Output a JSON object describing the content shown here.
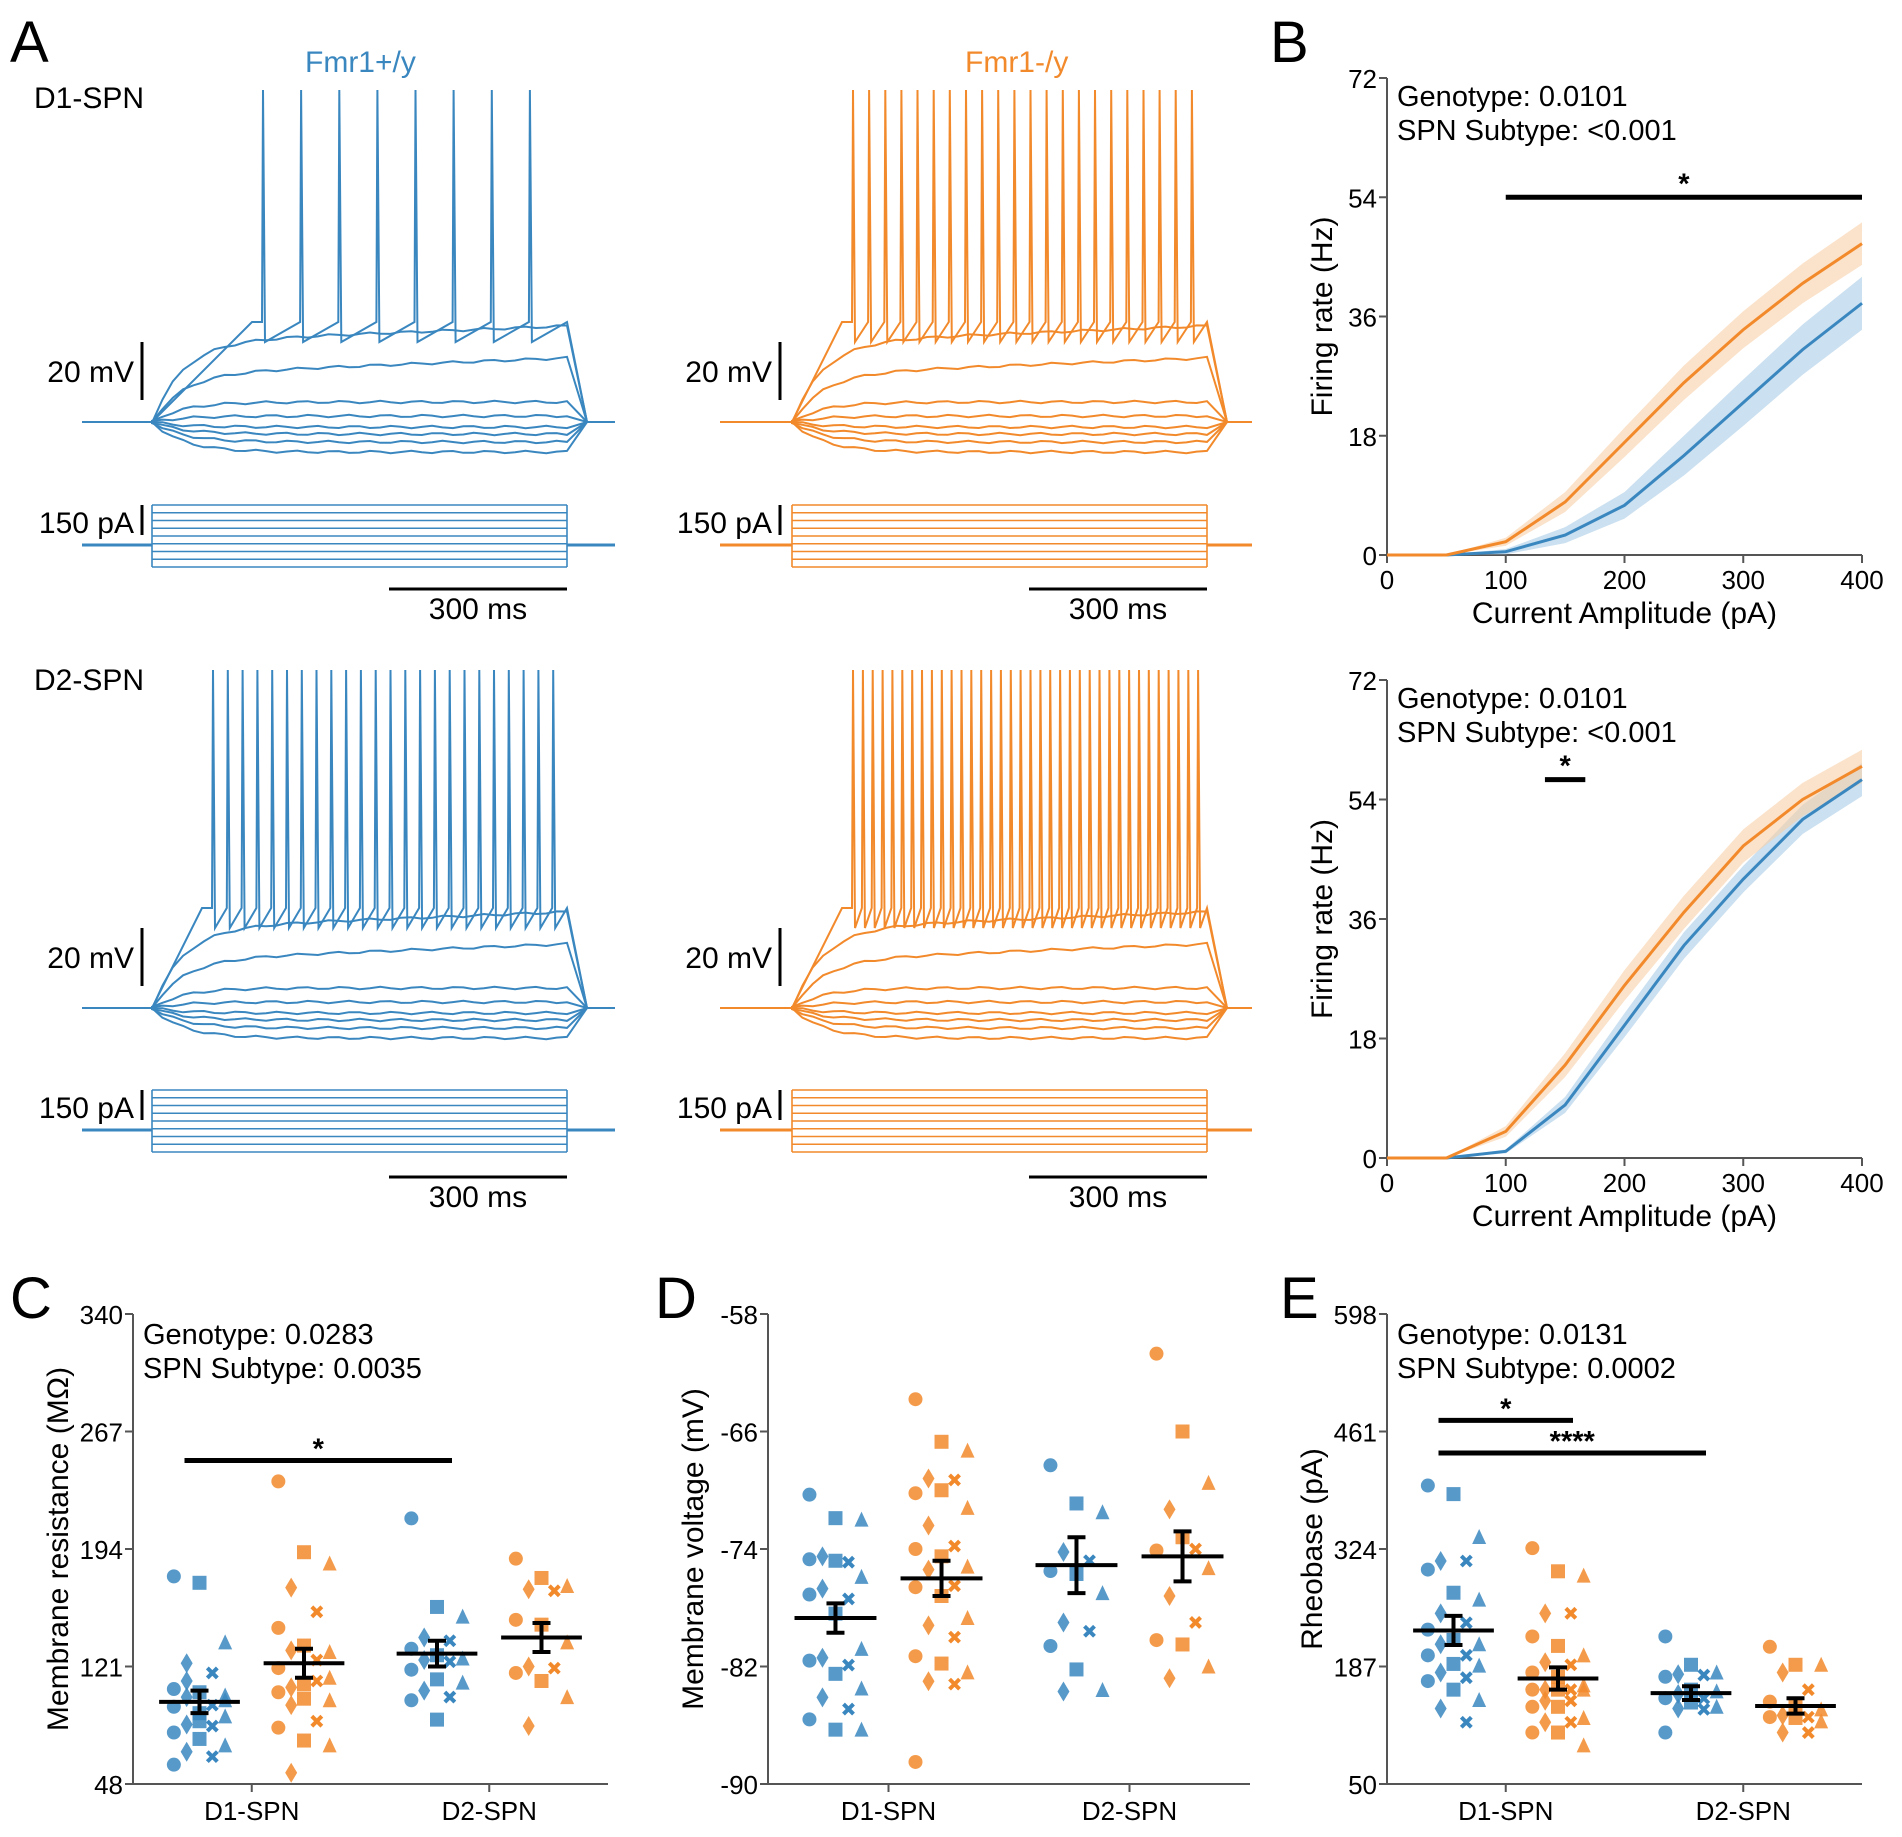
{
  "colors": {
    "wt": "#3a87c0",
    "ko": "#f28a2c",
    "wt_band": "#a9cbe6",
    "ko_band": "#f9cfa6"
  },
  "panel_a": {
    "letter": "A",
    "wt_label": "Fmr1+/y",
    "ko_label": "Fmr1-/y",
    "rows": [
      {
        "label": "D1-SPN",
        "wt_spikes": 8,
        "ko_spikes": 22
      },
      {
        "label": "D2-SPN",
        "wt_spikes": 24,
        "ko_spikes": 36
      }
    ],
    "voltage_scale": "20 mV",
    "current_scale": "150 pA",
    "time_scale": "300 ms"
  },
  "chart_data": [
    {
      "id": "B_D1",
      "panel": "B",
      "type": "line",
      "title": "",
      "xlabel": "Current Amplitude (pA)",
      "ylabel": "Firing rate (Hz)",
      "x": [
        0,
        50,
        100,
        150,
        200,
        250,
        300,
        350,
        400
      ],
      "xticks": [
        "0",
        "100",
        "200",
        "300",
        "400"
      ],
      "yticks": [
        "0",
        "18",
        "36",
        "54",
        "72"
      ],
      "xlim": [
        0,
        400
      ],
      "ylim": [
        0,
        72
      ],
      "annotations": [
        "Genotype: 0.0101",
        "SPN Subtype: <0.001"
      ],
      "significance": [
        {
          "x_from": 100,
          "x_to": 400,
          "y": 54,
          "label": "*"
        }
      ],
      "series": [
        {
          "name": "Fmr1+/y",
          "color": "wt",
          "values": [
            0,
            0,
            0.5,
            3,
            7.5,
            15,
            23,
            31,
            38
          ],
          "sem": [
            0,
            0,
            0.4,
            1.2,
            2,
            3,
            3.5,
            3.8,
            4
          ]
        },
        {
          "name": "Fmr1-/y",
          "color": "ko",
          "values": [
            0,
            0,
            2,
            8,
            17,
            26,
            34,
            41,
            47
          ],
          "sem": [
            0,
            0,
            0.6,
            1.5,
            2.2,
            2.6,
            2.8,
            3,
            3.2
          ]
        }
      ]
    },
    {
      "id": "B_D2",
      "panel": "B",
      "type": "line",
      "title": "",
      "xlabel": "Current Amplitude (pA)",
      "ylabel": "Firing rate (Hz)",
      "x": [
        0,
        50,
        100,
        150,
        200,
        250,
        300,
        350,
        400
      ],
      "xticks": [
        "0",
        "100",
        "200",
        "300",
        "400"
      ],
      "yticks": [
        "0",
        "18",
        "36",
        "54",
        "72"
      ],
      "xlim": [
        0,
        400
      ],
      "ylim": [
        0,
        72
      ],
      "annotations": [
        "Genotype: 0.0101",
        "SPN Subtype: <0.001"
      ],
      "significance": [
        {
          "x_from": 133,
          "x_to": 167,
          "y": 57,
          "label": "*"
        }
      ],
      "series": [
        {
          "name": "Fmr1+/y",
          "color": "wt",
          "values": [
            0,
            0,
            1,
            8,
            20,
            32,
            42,
            51,
            57
          ],
          "sem": [
            0,
            0,
            0.3,
            1.2,
            1.8,
            2,
            2,
            2.2,
            2.5
          ]
        },
        {
          "name": "Fmr1-/y",
          "color": "ko",
          "values": [
            0,
            0,
            4,
            14,
            26,
            37,
            47,
            54,
            59
          ],
          "sem": [
            0,
            0,
            0.8,
            1.8,
            2.3,
            2.5,
            2.5,
            2.5,
            2.5
          ]
        }
      ]
    },
    {
      "id": "C",
      "panel": "C",
      "type": "scatter",
      "ylabel": "Membrane resistance (MΩ)",
      "categories": [
        "D1-SPN",
        "D2-SPN"
      ],
      "yticks": [
        "48",
        "121",
        "194",
        "267",
        "340"
      ],
      "ylim": [
        48,
        340
      ],
      "annotations": [
        "Genotype: 0.0283",
        "SPN Subtype: 0.0035"
      ],
      "significance": [
        {
          "from": "D1-SPN:Fmr1+/y",
          "to": "D2-SPN:Fmr1+/y",
          "y": 249,
          "label": "*"
        }
      ],
      "groups": [
        {
          "category": "D1-SPN",
          "genotype": "Fmr1+/y",
          "mean": 99,
          "sem": 7,
          "points": [
            177,
            173,
            136,
            123,
            117,
            107,
            105,
            103,
            102,
            97,
            96,
            92,
            90,
            85,
            84,
            80,
            76,
            72,
            68,
            65,
            60,
            87,
            100,
            112
          ]
        },
        {
          "category": "D1-SPN",
          "genotype": "Fmr1-/y",
          "mean": 123,
          "sem": 9,
          "points": [
            236,
            192,
            185,
            170,
            155,
            145,
            134,
            130,
            131,
            125,
            120,
            110,
            114,
            108,
            112,
            105,
            101,
            100,
            97,
            87,
            83,
            75,
            72,
            55
          ]
        },
        {
          "category": "D2-SPN",
          "genotype": "Fmr1+/y",
          "mean": 129,
          "sem": 8,
          "points": [
            213,
            158,
            152,
            139,
            137,
            132,
            128,
            126,
            125,
            124,
            119,
            113,
            111,
            106,
            102,
            100,
            88
          ]
        },
        {
          "category": "D2-SPN",
          "genotype": "Fmr1-/y",
          "mean": 139,
          "sem": 9,
          "points": [
            188,
            176,
            171,
            169,
            168,
            150,
            147,
            136,
            121,
            120,
            117,
            112,
            102,
            84
          ]
        }
      ]
    },
    {
      "id": "D",
      "panel": "D",
      "type": "scatter",
      "ylabel": "Membrane voltage (mV)",
      "categories": [
        "D1-SPN",
        "D2-SPN"
      ],
      "yticks": [
        "-90",
        "-82",
        "-74",
        "-66",
        "-58"
      ],
      "ylim": [
        -90,
        -58
      ],
      "annotations": [],
      "significance": [],
      "groups": [
        {
          "category": "D1-SPN",
          "genotype": "Fmr1+/y",
          "mean": -78.7,
          "sem": 1.0,
          "points": [
            -70.3,
            -71.9,
            -72.0,
            -74.5,
            -74.9,
            -74.7,
            -74.8,
            -75.9,
            -76.7,
            -77.4,
            -77.1,
            -78.4,
            -80.8,
            -81.4,
            -81.9,
            -81.6,
            -82.5,
            -83.5,
            -84.1,
            -84.9,
            -85.6,
            -86.3,
            -86.3
          ]
        },
        {
          "category": "D1-SPN",
          "genotype": "Fmr1-/y",
          "mean": -76.0,
          "sem": 1.2,
          "points": [
            -63.8,
            -66.7,
            -67.3,
            -69.2,
            -69.3,
            -70.2,
            -70.0,
            -71.2,
            -72.4,
            -73.8,
            -74.0,
            -74.5,
            -75.2,
            -75.4,
            -76.5,
            -76.6,
            -77.2,
            -78.7,
            -79.2,
            -80.0,
            -81.3,
            -81.8,
            -82.4,
            -83.0,
            -83.2,
            -88.5
          ]
        },
        {
          "category": "D2-SPN",
          "genotype": "Fmr1+/y",
          "mean": -75.1,
          "sem": 1.9,
          "points": [
            -68.3,
            -70.9,
            -71.5,
            -74.2,
            -74.8,
            -75.5,
            -75.7,
            -77.0,
            -79.0,
            -79.6,
            -80.6,
            -82.2,
            -83.6,
            -83.7
          ]
        },
        {
          "category": "D2-SPN",
          "genotype": "Fmr1-/y",
          "mean": -74.5,
          "sem": 1.7,
          "points": [
            -60.7,
            -66.0,
            -69.5,
            -71.3,
            -74.0,
            -74.1,
            -73.2,
            -75.3,
            -77.2,
            -79.0,
            -80.2,
            -80.5,
            -82.0,
            -82.8
          ]
        }
      ]
    },
    {
      "id": "E",
      "panel": "E",
      "type": "scatter",
      "ylabel": "Rheobase (pA)",
      "categories": [
        "D1-SPN",
        "D2-SPN"
      ],
      "yticks": [
        "50",
        "187",
        "324",
        "461",
        "598"
      ],
      "ylim": [
        50,
        598
      ],
      "annotations": [
        "Genotype: 0.0131",
        "SPN Subtype: 0.0002"
      ],
      "significance": [
        {
          "from": "D1-SPN:Fmr1+/y",
          "to": "D1-SPN:Fmr1-/y",
          "y": 474,
          "label": "*"
        },
        {
          "from": "D1-SPN:Fmr1+/y",
          "to": "D2-SPN:Fmr1+/y",
          "y": 436,
          "label": "****"
        }
      ],
      "groups": [
        {
          "category": "D1-SPN",
          "genotype": "Fmr1+/y",
          "mean": 229,
          "sem": 17,
          "points": [
            398,
            388,
            338,
            310,
            310,
            300,
            273,
            265,
            249,
            238,
            230,
            218,
            213,
            213,
            200,
            200,
            190,
            188,
            180,
            174,
            170,
            160,
            148,
            138,
            122
          ]
        },
        {
          "category": "D1-SPN",
          "genotype": "Fmr1-/y",
          "mean": 173,
          "sem": 13,
          "points": [
            325,
            298,
            293,
            249,
            249,
            222,
            211,
            200,
            192,
            189,
            180,
            175,
            165,
            160,
            160,
            160,
            160,
            160,
            147,
            147,
            140,
            140,
            127,
            122,
            122,
            110,
            110,
            95
          ]
        },
        {
          "category": "D2-SPN",
          "genotype": "Fmr1+/y",
          "mean": 156,
          "sem": 8,
          "points": [
            222,
            189,
            180,
            178,
            177,
            175,
            160,
            158,
            155,
            150,
            150,
            145,
            140,
            138,
            137,
            110
          ]
        },
        {
          "category": "D2-SPN",
          "genotype": "Fmr1-/y",
          "mean": 141,
          "sem": 9,
          "points": [
            210,
            189,
            189,
            180,
            160,
            146,
            140,
            137,
            130,
            128,
            128,
            127,
            123,
            110,
            110
          ]
        }
      ]
    }
  ]
}
